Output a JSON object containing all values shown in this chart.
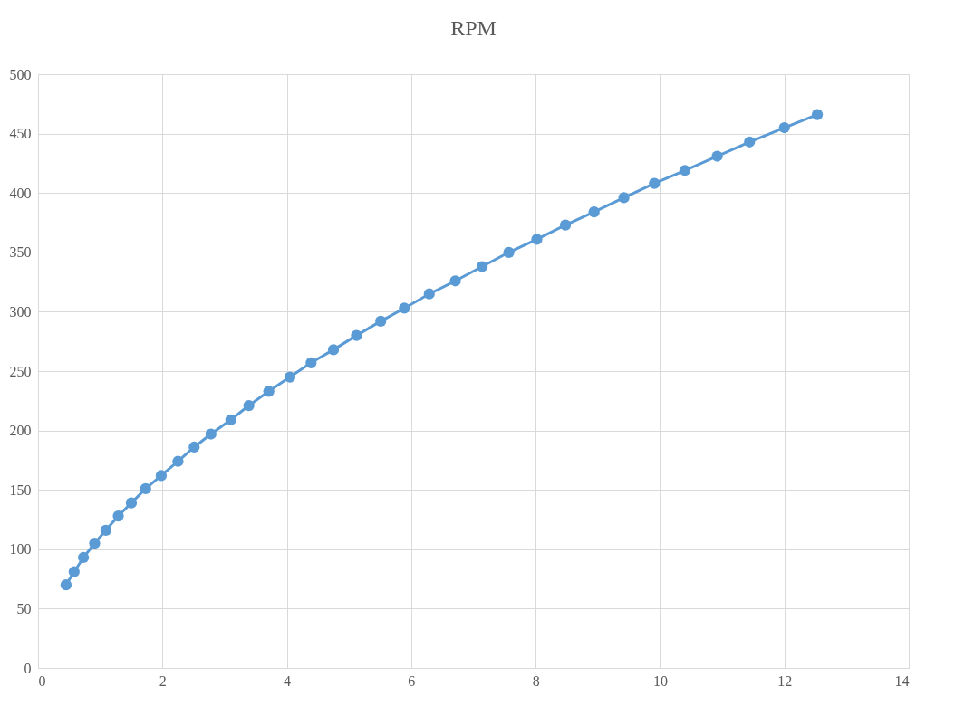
{
  "chart_data": {
    "type": "line",
    "title": "RPM",
    "x": [
      0.45,
      0.58,
      0.73,
      0.91,
      1.09,
      1.29,
      1.5,
      1.73,
      1.98,
      2.25,
      2.51,
      2.78,
      3.1,
      3.39,
      3.71,
      4.05,
      4.39,
      4.75,
      5.12,
      5.51,
      5.89,
      6.29,
      6.71,
      7.14,
      7.57,
      8.02,
      8.48,
      8.94,
      9.42,
      9.91,
      10.4,
      10.92,
      11.44,
      12.0,
      12.53
    ],
    "series": [
      {
        "color": "#5b9bd5",
        "values": [
          70,
          81,
          93,
          105,
          116,
          128,
          139,
          151,
          162,
          174,
          186,
          197,
          209,
          221,
          233,
          245,
          257,
          268,
          280,
          292,
          303,
          315,
          326,
          338,
          350,
          361,
          373,
          384,
          396,
          408,
          419,
          431,
          443,
          455,
          466
        ]
      }
    ],
    "xlim": [
      0,
      14
    ],
    "xticks": [
      0,
      2,
      4,
      6,
      8,
      10,
      12,
      14
    ],
    "ylim": [
      0,
      500
    ],
    "yticks": [
      0,
      50,
      100,
      150,
      200,
      250,
      300,
      350,
      400,
      450,
      500
    ],
    "grid": true,
    "marker": "circle",
    "line_style": "solid"
  }
}
